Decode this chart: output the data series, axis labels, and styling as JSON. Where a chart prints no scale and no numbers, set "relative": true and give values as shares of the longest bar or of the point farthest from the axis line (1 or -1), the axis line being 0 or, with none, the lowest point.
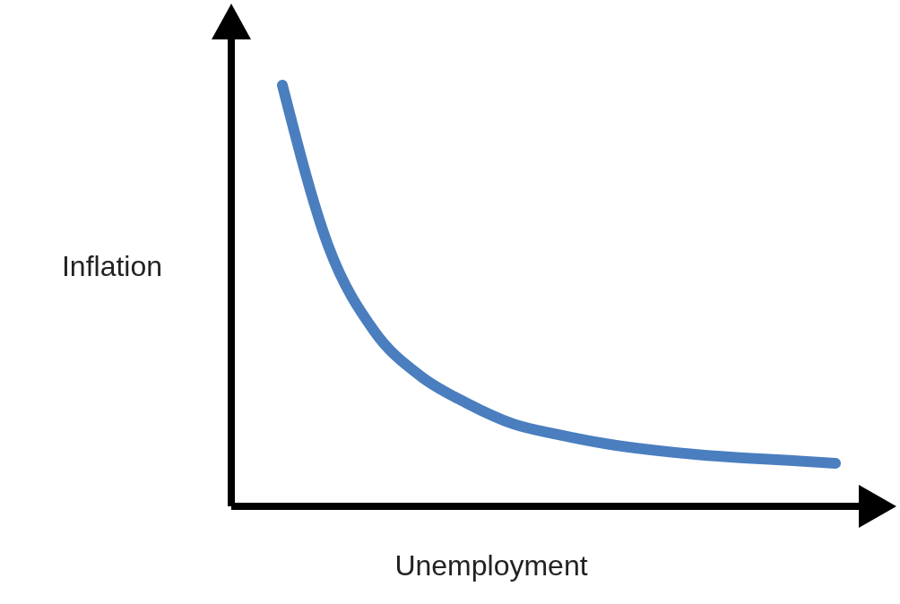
{
  "chart_data": {
    "type": "line",
    "relative": true,
    "xlabel": "Unemployment",
    "ylabel": "Inflation",
    "categories": [
      null,
      null,
      null,
      null,
      null,
      null,
      null,
      null,
      null,
      null,
      null,
      null,
      null
    ],
    "series": [
      {
        "color": "#4a7ebf",
        "values": [
          1,
          0.617,
          0.415,
          0.309,
          0.245,
          0.196,
          0.17,
          0.149,
          0.134,
          0.123,
          0.115,
          0.109,
          0.102
        ]
      }
    ],
    "marker": "none",
    "line_style": "solid"
  }
}
